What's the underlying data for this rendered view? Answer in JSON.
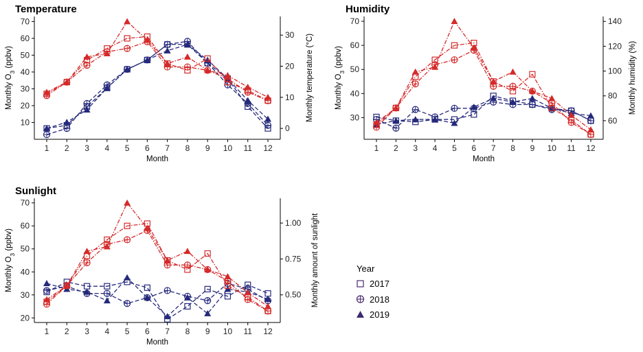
{
  "chart_data": [
    {
      "type": "line",
      "title": "Temperature",
      "xlabel": "Month",
      "ylabel": "Monthly O3 (ppbv)",
      "ylabel_sub": "3",
      "ylabel_parts": [
        "Monthly O",
        "3",
        " (ppbv)"
      ],
      "y2label": "Monthly temperature (°C)",
      "x": [
        1,
        2,
        3,
        4,
        5,
        6,
        7,
        8,
        9,
        10,
        11,
        12
      ],
      "ylim": [
        0,
        73
      ],
      "yticks": [
        10,
        20,
        30,
        40,
        50,
        60,
        70
      ],
      "y2lim": [
        -3.5,
        36
      ],
      "y2ticks": [
        0,
        10,
        20,
        30
      ],
      "o3_series": [
        {
          "name": "2017",
          "values": [
            27,
            34,
            47,
            54,
            60,
            61,
            45,
            41,
            48,
            34,
            29,
            23
          ]
        },
        {
          "name": "2018",
          "values": [
            26,
            34,
            44,
            52,
            54,
            58,
            43,
            43,
            41,
            36,
            28,
            23
          ]
        },
        {
          "name": "2019",
          "values": [
            28,
            34,
            49,
            51,
            70,
            59,
            45,
            49,
            41,
            38,
            31,
            25
          ]
        }
      ],
      "aux_series": [
        {
          "name": "2017",
          "values": [
            0,
            1,
            7,
            13,
            19,
            22,
            27,
            27,
            21,
            16,
            7,
            0
          ]
        },
        {
          "name": "2018",
          "values": [
            -2,
            0,
            8,
            14,
            19,
            22,
            27,
            28,
            21,
            14,
            8,
            1
          ]
        },
        {
          "name": "2019",
          "values": [
            0,
            2,
            6,
            13,
            19,
            22,
            25,
            27,
            22,
            16,
            9,
            3
          ]
        }
      ]
    },
    {
      "type": "line",
      "title": "Humidity",
      "xlabel": "Month",
      "ylabel_parts": [
        "Monthly O",
        "3",
        " (ppbv)"
      ],
      "y2label": "Monthly humidity (%)",
      "x": [
        1,
        2,
        3,
        4,
        5,
        6,
        7,
        8,
        9,
        10,
        11,
        12
      ],
      "ylim": [
        21,
        72
      ],
      "yticks": [
        30,
        40,
        50,
        60,
        70
      ],
      "y2lim": [
        45,
        144
      ],
      "y2ticks": [
        60,
        80,
        100,
        120,
        140
      ],
      "o3_series": [
        {
          "name": "2017",
          "values": [
            27,
            34,
            47,
            54,
            60,
            61,
            45,
            41,
            48,
            34,
            29,
            23
          ]
        },
        {
          "name": "2018",
          "values": [
            26,
            34,
            44,
            52,
            54,
            58,
            43,
            43,
            41,
            36,
            28,
            23
          ]
        },
        {
          "name": "2019",
          "values": [
            28,
            34,
            49,
            51,
            70,
            59,
            45,
            49,
            41,
            38,
            31,
            25
          ]
        }
      ],
      "aux_series": [
        {
          "name": "2017",
          "values": [
            63,
            60,
            59,
            61,
            61,
            65,
            80,
            76,
            73,
            70,
            68,
            60
          ]
        },
        {
          "name": "2018",
          "values": [
            61,
            54,
            69,
            63,
            70,
            70,
            75,
            73,
            73,
            69,
            68,
            60
          ]
        },
        {
          "name": "2019",
          "values": [
            57,
            60,
            61,
            61,
            58,
            71,
            78,
            75,
            78,
            70,
            66,
            64
          ]
        }
      ]
    },
    {
      "type": "line",
      "title": "Sunlight",
      "xlabel": "Month",
      "ylabel_parts": [
        "Monthly O",
        "3",
        " (ppbv)"
      ],
      "y2label": "Monthly amount of sunlight",
      "x": [
        1,
        2,
        3,
        4,
        5,
        6,
        7,
        8,
        9,
        10,
        11,
        12
      ],
      "ylim": [
        18,
        72
      ],
      "yticks": [
        20,
        30,
        40,
        50,
        60,
        70
      ],
      "y2lim": [
        0.3075,
        1.1725
      ],
      "y2ticks": [
        "0.50",
        "0.75",
        "1.00"
      ],
      "o3_series": [
        {
          "name": "2017",
          "values": [
            27,
            34,
            47,
            54,
            60,
            61,
            45,
            41,
            48,
            34,
            29,
            23
          ]
        },
        {
          "name": "2018",
          "values": [
            26,
            34,
            44,
            52,
            54,
            58,
            43,
            43,
            41,
            36,
            28,
            23
          ]
        },
        {
          "name": "2019",
          "values": [
            28,
            34,
            49,
            51,
            70,
            59,
            45,
            49,
            41,
            38,
            31,
            25
          ]
        }
      ],
      "aux_series": [
        {
          "name": "2017",
          "values": [
            0.52,
            0.59,
            0.56,
            0.56,
            0.59,
            0.55,
            0.33,
            0.42,
            0.54,
            0.49,
            0.57,
            0.51
          ]
        },
        {
          "name": "2018",
          "values": [
            0.53,
            0.56,
            0.51,
            0.51,
            0.44,
            0.48,
            0.53,
            0.49,
            0.46,
            0.58,
            0.54,
            0.46
          ]
        },
        {
          "name": "2019",
          "values": [
            0.58,
            0.54,
            0.52,
            0.46,
            0.62,
            0.48,
            0.35,
            0.48,
            0.37,
            0.54,
            0.52,
            0.47
          ]
        }
      ]
    }
  ],
  "legend": {
    "title": "Year",
    "entries": [
      {
        "label": "2017",
        "marker": "square-open"
      },
      {
        "label": "2018",
        "marker": "circle-plus"
      },
      {
        "label": "2019",
        "marker": "triangle-filled"
      }
    ]
  },
  "colors": {
    "o3": "#d42a2a",
    "aux": "#25297a"
  }
}
